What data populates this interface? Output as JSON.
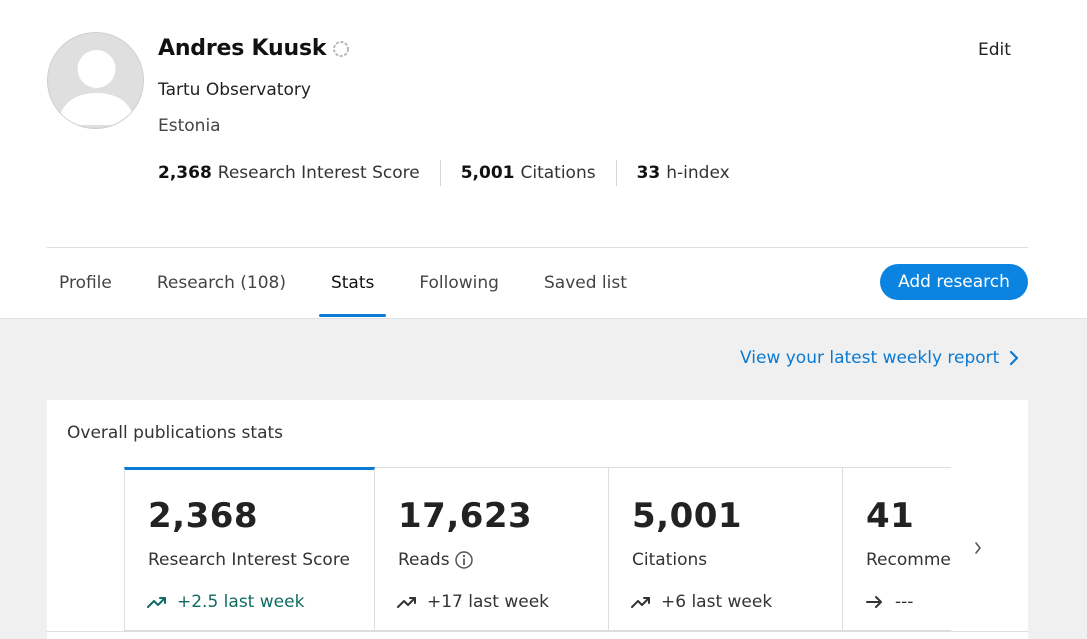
{
  "profile": {
    "name": "Andres Kuusk",
    "institution": "Tartu Observatory",
    "country": "Estonia",
    "edit_label": "Edit",
    "metrics": [
      {
        "value": "2,368",
        "label": "Research Interest Score"
      },
      {
        "value": "5,001",
        "label": "Citations"
      },
      {
        "value": "33",
        "label": "h-index"
      }
    ]
  },
  "tabs": [
    {
      "label": "Profile"
    },
    {
      "label": "Research (108)"
    },
    {
      "label": "Stats",
      "active": true
    },
    {
      "label": "Following"
    },
    {
      "label": "Saved list"
    }
  ],
  "add_research_label": "Add research",
  "weekly_report_label": "View your latest weekly report",
  "overall": {
    "title": "Overall publications stats",
    "stats": [
      {
        "value": "2,368",
        "label": "Research Interest Score",
        "trend": "+2.5 last week",
        "trend_icon": "trending-up-icon"
      },
      {
        "value": "17,623",
        "label": "Reads",
        "trend": "+17 last week",
        "trend_icon": "trending-up-icon",
        "info_icon": "info-icon"
      },
      {
        "value": "5,001",
        "label": "Citations",
        "trend": "+6 last week",
        "trend_icon": "trending-up-icon"
      },
      {
        "value": "41",
        "label": "Recomme",
        "trend": "---",
        "trend_icon": "arrow-right-icon"
      }
    ]
  },
  "colors": {
    "accent": "#0a84e0",
    "link": "#0a7ad3",
    "trend_up": "#0f6b63",
    "background_grey": "#f0f0f0"
  }
}
